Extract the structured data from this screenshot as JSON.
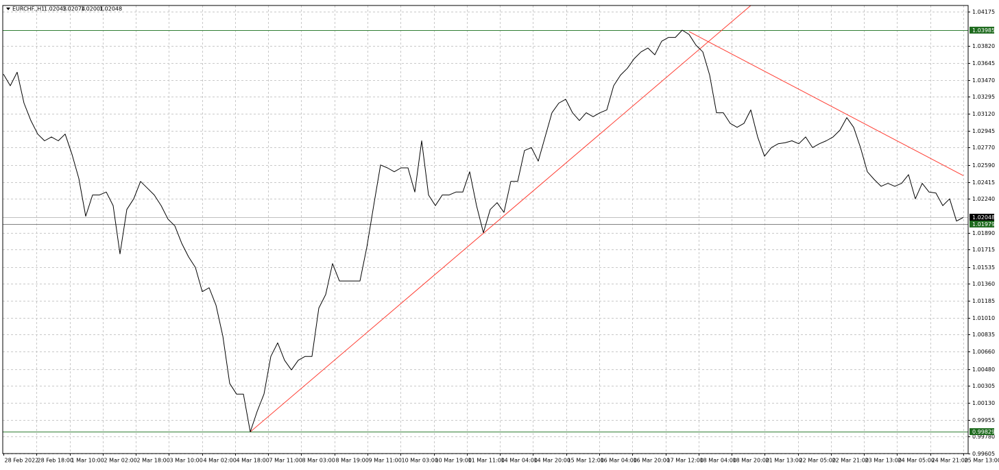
{
  "chart_data": {
    "type": "line",
    "symbol": "EURCHF.,H1",
    "ohlc": [
      1.02043,
      1.02074,
      1.02001,
      1.02048
    ],
    "color": "#000000",
    "grid": true,
    "ylim": [
      0.99605,
      1.0424
    ],
    "yticks": [
      1.04175,
      {
        "value": 1.0382,
        "label": "1.03820"
      },
      1.03645,
      {
        "value": 1.0347,
        "label": "1.03470"
      },
      1.03295,
      {
        "value": 1.0312,
        "label": "1.03120"
      },
      1.02945,
      {
        "value": 1.0277,
        "label": "1.02770"
      },
      {
        "value": 1.0259,
        "label": "1.02590"
      },
      1.02415,
      {
        "value": 1.0224,
        "label": "1.02240"
      },
      {
        "value": 1.0189,
        "label": "1.01890"
      },
      1.01715,
      1.01535,
      {
        "value": 1.0136,
        "label": "1.01360"
      },
      1.01185,
      {
        "value": 1.0101,
        "label": "1.01010"
      },
      1.00835,
      {
        "value": 1.0066,
        "label": "1.00660"
      },
      {
        "value": 1.0048,
        "label": "1.00480"
      },
      1.00305,
      {
        "value": 1.0013,
        "label": "1.00130"
      },
      0.99955,
      {
        "value": 0.9978,
        "label": "0.99780"
      },
      0.99605
    ],
    "x_labels": [
      "28 Feb 2022",
      "28 Feb 18:00",
      "1 Mar 10:00",
      "2 Mar 02:00",
      "2 Mar 18:00",
      "3 Mar 10:00",
      "4 Mar 02:00",
      "4 Mar 18:00",
      "7 Mar 11:00",
      "8 Mar 03:00",
      "8 Mar 19:00",
      "9 Mar 11:00",
      "10 Mar 03:00",
      "10 Mar 19:00",
      "11 Mar 11:00",
      "14 Mar 04:00",
      "14 Mar 20:00",
      "15 Mar 12:00",
      "16 Mar 04:00",
      "16 Mar 20:00",
      "17 Mar 12:00",
      "18 Mar 04:00",
      "18 Mar 20:00",
      "21 Mar 13:00",
      "22 Mar 05:00",
      "22 Mar 21:00",
      "23 Mar 13:00",
      "24 Mar 05:00",
      "24 Mar 21:00",
      "25 Mar 13:00"
    ],
    "values": [
      1.0353,
      1.0341,
      1.0355,
      1.0323,
      1.0305,
      1.0291,
      1.0284,
      1.0288,
      1.0284,
      1.0291,
      1.027,
      1.0245,
      1.0206,
      1.0228,
      1.0228,
      1.0231,
      1.0217,
      1.0167,
      1.0213,
      1.0224,
      1.0242,
      1.0235,
      1.0228,
      1.0217,
      1.0203,
      1.0196,
      1.0178,
      1.0164,
      1.0153,
      1.0128,
      1.0132,
      1.0114,
      1.0082,
      1.0033,
      1.0022,
      1.0022,
      0.99829,
      1.0004,
      1.0022,
      1.0061,
      1.0075,
      1.0057,
      1.0047,
      1.0057,
      1.0061,
      1.0061,
      1.0111,
      1.0125,
      1.0157,
      1.0139,
      1.0139,
      1.0139,
      1.0139,
      1.0174,
      1.0217,
      1.0259,
      1.0256,
      1.0252,
      1.0256,
      1.0256,
      1.0231,
      1.0284,
      1.0228,
      1.0217,
      1.0228,
      1.0228,
      1.0231,
      1.0231,
      1.0252,
      1.0217,
      1.0189,
      1.0213,
      1.022,
      1.021,
      1.0242,
      1.0242,
      1.0274,
      1.0277,
      1.0263,
      1.0288,
      1.0313,
      1.0323,
      1.0327,
      1.0313,
      1.0305,
      1.0313,
      1.0309,
      1.0313,
      1.0316,
      1.0341,
      1.0352,
      1.0359,
      1.0369,
      1.0376,
      1.038,
      1.0373,
      1.0387,
      1.0391,
      1.0391,
      1.03985,
      1.0394,
      1.0383,
      1.0376,
      1.0352,
      1.0313,
      1.0313,
      1.0302,
      1.0298,
      1.0302,
      1.0316,
      1.0288,
      1.0268,
      1.0277,
      1.0281,
      1.0282,
      1.0284,
      1.0281,
      1.0288,
      1.0277,
      1.0281,
      1.0284,
      1.0288,
      1.0295,
      1.0308,
      1.0298,
      1.0277,
      1.0252,
      1.0244,
      1.0237,
      1.024,
      1.0237,
      1.024,
      1.0249,
      1.0224,
      1.024,
      1.0231,
      1.023,
      1.0217,
      1.0224,
      1.0201,
      1.02048
    ],
    "price_levels": [
      {
        "value": 1.03985,
        "color": "#2f7d32",
        "label_color": "#1f6b1f"
      },
      {
        "value": 1.02048,
        "color": "#c0c0c0",
        "label_color": "#000000"
      },
      {
        "value": 1.01979,
        "color": "#808080",
        "label_color": "#1f6b1f"
      },
      {
        "value": 0.99829,
        "color": "#2f7d32",
        "label_color": "#1f6b1f"
      }
    ],
    "trendlines": [
      {
        "color": "#ff3b30",
        "from": {
          "index": 36,
          "price": 0.99829
        },
        "to": {
          "index": 109,
          "price": 1.0424
        }
      },
      {
        "color": "#ff3b30",
        "from": {
          "index": 100,
          "price": 1.0397
        },
        "to": {
          "index": 140,
          "price": 1.0248
        }
      }
    ]
  }
}
